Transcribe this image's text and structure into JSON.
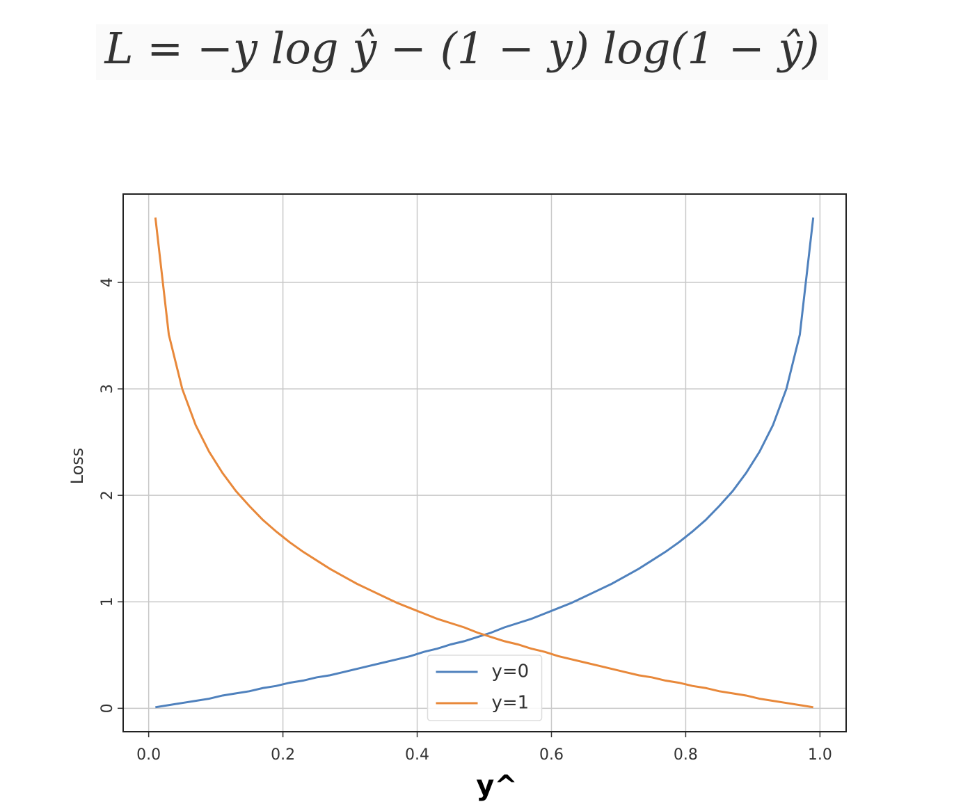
{
  "chart_data": {
    "type": "line",
    "title": "L = −y log ŷ − (1 − y) log(1 − ŷ)",
    "x_label": "y^",
    "y_label": "Loss",
    "x": [
      0.01,
      0.03,
      0.05,
      0.07,
      0.09,
      0.11,
      0.13,
      0.15,
      0.17,
      0.19,
      0.21,
      0.23,
      0.25,
      0.27,
      0.29,
      0.31,
      0.33,
      0.35,
      0.37,
      0.39,
      0.41,
      0.43,
      0.45,
      0.47,
      0.49,
      0.51,
      0.53,
      0.55,
      0.57,
      0.59,
      0.61,
      0.63,
      0.65,
      0.67,
      0.69,
      0.71,
      0.73,
      0.75,
      0.77,
      0.79,
      0.81,
      0.83,
      0.85,
      0.87,
      0.89,
      0.91,
      0.93,
      0.95,
      0.97,
      0.99
    ],
    "series": [
      {
        "name": "y=0",
        "color": "#4f81bd",
        "values": [
          0.01,
          0.03,
          0.05,
          0.07,
          0.09,
          0.12,
          0.14,
          0.16,
          0.19,
          0.21,
          0.24,
          0.26,
          0.29,
          0.31,
          0.34,
          0.37,
          0.4,
          0.43,
          0.46,
          0.49,
          0.53,
          0.56,
          0.6,
          0.63,
          0.67,
          0.71,
          0.76,
          0.8,
          0.84,
          0.89,
          0.94,
          0.99,
          1.05,
          1.11,
          1.17,
          1.24,
          1.31,
          1.39,
          1.47,
          1.56,
          1.66,
          1.77,
          1.9,
          2.04,
          2.21,
          2.41,
          2.66,
          3.0,
          3.51,
          4.61
        ]
      },
      {
        "name": "y=1",
        "color": "#e8883a",
        "values": [
          4.61,
          3.51,
          3.0,
          2.66,
          2.41,
          2.21,
          2.04,
          1.9,
          1.77,
          1.66,
          1.56,
          1.47,
          1.39,
          1.31,
          1.24,
          1.17,
          1.11,
          1.05,
          0.99,
          0.94,
          0.89,
          0.84,
          0.8,
          0.76,
          0.71,
          0.67,
          0.63,
          0.6,
          0.56,
          0.53,
          0.49,
          0.46,
          0.43,
          0.4,
          0.37,
          0.34,
          0.31,
          0.29,
          0.26,
          0.24,
          0.21,
          0.19,
          0.16,
          0.14,
          0.12,
          0.09,
          0.07,
          0.05,
          0.03,
          0.01
        ]
      }
    ],
    "xlim": [
      -0.038,
      1.039
    ],
    "ylim": [
      -0.22,
      4.83
    ],
    "xticks": [
      {
        "value": 0,
        "label": "0.0"
      },
      0.2,
      0.4,
      0.6,
      0.8,
      {
        "value": 1,
        "label": "1.0"
      }
    ],
    "yticks": [
      0,
      1,
      2,
      3,
      4
    ],
    "grid": true,
    "legend": "lower center"
  }
}
